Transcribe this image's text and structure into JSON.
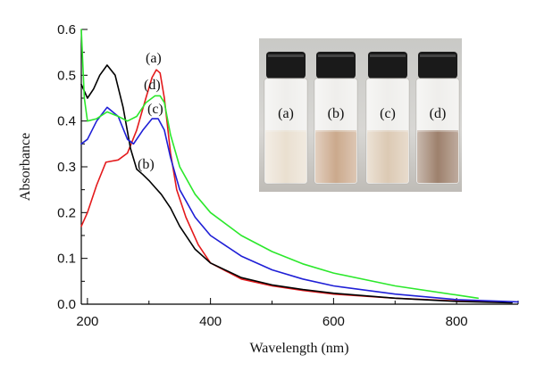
{
  "chart_data": {
    "type": "line",
    "xlabel": "Wavelength (nm)",
    "ylabel": "Absorbance",
    "xlim": [
      190,
      900
    ],
    "ylim": [
      0,
      0.6
    ],
    "x_ticks": [
      200,
      400,
      600,
      800
    ],
    "y_ticks": [
      0.0,
      0.1,
      0.2,
      0.3,
      0.4,
      0.5,
      0.6
    ],
    "series": [
      {
        "name": "(a)",
        "color": "#e41a1c",
        "x": [
          190,
          200,
          215,
          230,
          250,
          265,
          280,
          295,
          305,
          312,
          318,
          325,
          335,
          345,
          360,
          380,
          400,
          450,
          500,
          550,
          600,
          700,
          800,
          880
        ],
        "y": [
          0.17,
          0.2,
          0.26,
          0.31,
          0.315,
          0.33,
          0.38,
          0.45,
          0.495,
          0.512,
          0.505,
          0.45,
          0.33,
          0.25,
          0.19,
          0.13,
          0.09,
          0.055,
          0.04,
          0.03,
          0.022,
          0.013,
          0.007,
          0.004
        ]
      },
      {
        "name": "(b)",
        "color": "#000000",
        "x": [
          190,
          200,
          210,
          220,
          232,
          245,
          258,
          270,
          280,
          290,
          300,
          310,
          320,
          335,
          350,
          375,
          400,
          450,
          500,
          550,
          600,
          700,
          800,
          890
        ],
        "y": [
          0.48,
          0.45,
          0.47,
          0.5,
          0.522,
          0.5,
          0.43,
          0.34,
          0.295,
          0.283,
          0.27,
          0.255,
          0.24,
          0.21,
          0.17,
          0.12,
          0.09,
          0.058,
          0.042,
          0.032,
          0.024,
          0.013,
          0.006,
          0.003
        ]
      },
      {
        "name": "(c)",
        "color": "#1f1fd6",
        "x": [
          190,
          200,
          215,
          232,
          250,
          265,
          275,
          290,
          305,
          315,
          325,
          335,
          350,
          375,
          400,
          450,
          500,
          550,
          600,
          700,
          800,
          900
        ],
        "y": [
          0.35,
          0.36,
          0.4,
          0.43,
          0.41,
          0.36,
          0.35,
          0.38,
          0.405,
          0.405,
          0.38,
          0.32,
          0.25,
          0.19,
          0.15,
          0.105,
          0.075,
          0.055,
          0.04,
          0.022,
          0.01,
          0.005
        ]
      },
      {
        "name": "(d)",
        "color": "#2ce82c",
        "x": [
          190,
          195,
          200,
          215,
          232,
          250,
          265,
          280,
          295,
          310,
          318,
          325,
          335,
          350,
          375,
          400,
          450,
          500,
          550,
          600,
          700,
          800,
          835
        ],
        "y": [
          0.6,
          0.45,
          0.4,
          0.405,
          0.42,
          0.41,
          0.4,
          0.41,
          0.44,
          0.455,
          0.455,
          0.44,
          0.37,
          0.3,
          0.24,
          0.2,
          0.15,
          0.115,
          0.088,
          0.068,
          0.04,
          0.02,
          0.013
        ]
      }
    ]
  },
  "curve_labels": {
    "a": "(a)",
    "d": "(d)",
    "c": "(c)",
    "b": "(b)"
  },
  "inset": {
    "vials": [
      {
        "label": "(a)",
        "liquid_color": "#e6dac8"
      },
      {
        "label": "(b)",
        "liquid_color": "#c29a78"
      },
      {
        "label": "(c)",
        "liquid_color": "#d6c0a6"
      },
      {
        "label": "(d)",
        "liquid_color": "#8c6a52"
      }
    ]
  }
}
